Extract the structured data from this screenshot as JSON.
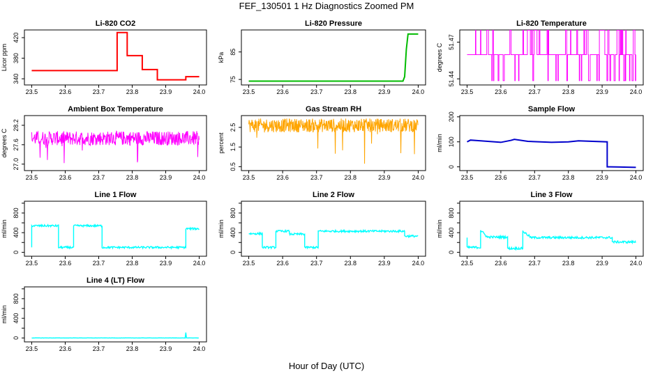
{
  "page": {
    "title": "FEF_130501  1 Hz Diagnostics Zoomed PM",
    "xlabel": "Hour of Day (UTC)"
  },
  "chart_data": [
    {
      "type": "line",
      "title": "Li-820 CO2",
      "ylabel": "Licor ppm",
      "color": "#ff0000",
      "xlim": [
        23.5,
        24.0
      ],
      "ylim": [
        328,
        435
      ],
      "xticks": [
        "23.5",
        "23.6",
        "23.7",
        "23.8",
        "23.9",
        "24.0"
      ],
      "yticks": [
        340,
        380,
        420
      ],
      "ytick_labels": [
        "340",
        "380",
        "420"
      ],
      "series": [
        {
          "x": [
            23.5,
            23.755,
            23.755,
            23.785,
            23.785,
            23.83,
            23.83,
            23.875,
            23.875,
            23.96,
            23.96,
            24.0
          ],
          "values": [
            356,
            356,
            430,
            430,
            385,
            385,
            358,
            358,
            338,
            338,
            344,
            344
          ]
        }
      ]
    },
    {
      "type": "line",
      "title": "Li-820 Pressure",
      "ylabel": "kPa",
      "color": "#00bb00",
      "xlim": [
        23.5,
        24.0
      ],
      "ylim": [
        73,
        93
      ],
      "xticks": [
        "23.5",
        "23.6",
        "23.7",
        "23.8",
        "23.9",
        "24.0"
      ],
      "yticks": [
        75,
        85
      ],
      "ytick_labels": [
        "75",
        "85"
      ],
      "series": [
        {
          "x": [
            23.5,
            23.955,
            23.96,
            23.965,
            23.97,
            24.0
          ],
          "values": [
            74.4,
            74.4,
            76,
            86,
            91.5,
            91.5
          ]
        }
      ]
    },
    {
      "type": "line",
      "title": "Li-820 Temperature",
      "ylabel": "degrees C",
      "color": "#ff00ff",
      "xlim": [
        23.5,
        24.0
      ],
      "ylim": [
        51.435,
        51.48
      ],
      "xticks": [
        "23.5",
        "23.6",
        "23.7",
        "23.8",
        "23.9",
        "24.0"
      ],
      "yticks": [
        51.44,
        51.47
      ],
      "ytick_labels": [
        "51.44",
        "51.47"
      ],
      "levels": [
        51.4385,
        51.4598,
        51.4798
      ],
      "series": [
        {
          "x": [
            23.5,
            24.0
          ],
          "values": [
            51.4598,
            51.4598
          ]
        }
      ]
    },
    {
      "type": "line",
      "title": "Ambient Box Temperature",
      "ylabel": "degrees C",
      "color": "#ff00ff",
      "xlim": [
        23.5,
        24.0
      ],
      "ylim": [
        26.8,
        28.5
      ],
      "xticks": [
        "23.5",
        "23.6",
        "23.7",
        "23.8",
        "23.9",
        "24.0"
      ],
      "yticks": [
        27.0,
        27.6,
        28.2
      ],
      "ytick_labels": [
        "27.0",
        "27.6",
        "28.2"
      ],
      "series": [
        {
          "x": [
            23.5,
            24.0
          ],
          "values": [
            27.8,
            27.8
          ]
        }
      ]
    },
    {
      "type": "line",
      "title": "Gas Stream RH",
      "ylabel": "percent",
      "color": "#ffa500",
      "xlim": [
        23.5,
        24.0
      ],
      "ylim": [
        0.3,
        3.1
      ],
      "xticks": [
        "23.5",
        "23.6",
        "23.7",
        "23.8",
        "23.9",
        "24.0"
      ],
      "yticks": [
        0.5,
        1.5,
        2.5
      ],
      "ytick_labels": [
        "0.5",
        "1.5",
        "2.5"
      ],
      "series": [
        {
          "x": [
            23.5,
            24.0
          ],
          "values": [
            2.6,
            2.6
          ]
        }
      ]
    },
    {
      "type": "line",
      "title": "Sample Flow",
      "ylabel": "ml/min",
      "color": "#0000cc",
      "xlim": [
        23.5,
        24.0
      ],
      "ylim": [
        -15,
        205
      ],
      "xticks": [
        "23.5",
        "23.6",
        "23.7",
        "23.8",
        "23.9",
        "24.0"
      ],
      "yticks": [
        0,
        100,
        200
      ],
      "ytick_labels": [
        "0",
        "100",
        "200"
      ],
      "series": [
        {
          "x": [
            23.5,
            23.51,
            23.53,
            23.6,
            23.63,
            23.64,
            23.68,
            23.75,
            23.8,
            23.83,
            23.915,
            23.915,
            23.925,
            24.0
          ],
          "values": [
            100,
            107,
            105,
            98,
            106,
            110,
            102,
            98,
            100,
            104,
            100,
            0,
            0,
            -2
          ]
        }
      ]
    },
    {
      "type": "line",
      "title": "Line 1 Flow",
      "ylabel": "ml/min",
      "color": "#00ffff",
      "xlim": [
        23.5,
        24.0
      ],
      "ylim": [
        -80,
        1040
      ],
      "xticks": [
        "23.5",
        "23.6",
        "23.7",
        "23.8",
        "23.9",
        "24.0"
      ],
      "yticks": [
        0,
        400,
        800
      ],
      "ytick_labels": [
        "0",
        "400",
        "800"
      ],
      "yticks_extra": [
        200,
        600,
        1000
      ],
      "noise": 40,
      "series": [
        {
          "x": [
            23.5,
            23.5,
            23.58,
            23.58,
            23.625,
            23.625,
            23.71,
            23.71,
            23.96,
            23.96,
            24.0
          ],
          "values": [
            100,
            540,
            540,
            100,
            100,
            540,
            540,
            100,
            100,
            480,
            480
          ]
        }
      ]
    },
    {
      "type": "line",
      "title": "Line 2 Flow",
      "ylabel": "ml/min",
      "color": "#00ffff",
      "xlim": [
        23.5,
        24.0
      ],
      "ylim": [
        -80,
        1040
      ],
      "xticks": [
        "23.5",
        "23.6",
        "23.7",
        "23.8",
        "23.9",
        "24.0"
      ],
      "yticks": [
        0,
        400,
        800
      ],
      "ytick_labels": [
        "0",
        "400",
        "800"
      ],
      "yticks_extra": [
        200,
        600,
        1000
      ],
      "noise": 40,
      "series": [
        {
          "x": [
            23.5,
            23.54,
            23.54,
            23.58,
            23.58,
            23.62,
            23.62,
            23.665,
            23.665,
            23.705,
            23.705,
            23.96,
            23.96,
            24.0
          ],
          "values": [
            380,
            380,
            100,
            100,
            430,
            430,
            370,
            370,
            100,
            100,
            430,
            430,
            330,
            330
          ]
        }
      ]
    },
    {
      "type": "line",
      "title": "Line 3 Flow",
      "ylabel": "ml/min",
      "color": "#00ffff",
      "xlim": [
        23.5,
        24.0
      ],
      "ylim": [
        -80,
        1040
      ],
      "xticks": [
        "23.5",
        "23.6",
        "23.7",
        "23.8",
        "23.9",
        "24.0"
      ],
      "yticks": [
        0,
        400,
        800
      ],
      "ytick_labels": [
        "0",
        "400",
        "800"
      ],
      "yticks_extra": [
        200,
        600,
        1000
      ],
      "noise": 45,
      "series": [
        {
          "x": [
            23.5,
            23.5,
            23.54,
            23.54,
            23.56,
            23.62,
            23.62,
            23.665,
            23.665,
            23.69,
            23.93,
            23.93,
            24.0
          ],
          "values": [
            300,
            100,
            100,
            450,
            310,
            310,
            80,
            80,
            430,
            300,
            300,
            210,
            210
          ]
        }
      ]
    },
    {
      "type": "line",
      "title": "Line 4 (LT) Flow",
      "ylabel": "ml/min",
      "color": "#00ffff",
      "xlim": [
        23.5,
        24.0
      ],
      "ylim": [
        -80,
        1040
      ],
      "xticks": [
        "23.5",
        "23.6",
        "23.7",
        "23.8",
        "23.9",
        "24.0"
      ],
      "yticks": [
        0,
        400,
        800
      ],
      "ytick_labels": [
        "0",
        "400",
        "800"
      ],
      "yticks_extra": [
        200,
        600,
        1000
      ],
      "noise": 4,
      "series": [
        {
          "x": [
            23.5,
            23.958,
            23.96,
            23.962,
            24.0
          ],
          "values": [
            0,
            0,
            110,
            0,
            0
          ]
        }
      ]
    }
  ]
}
